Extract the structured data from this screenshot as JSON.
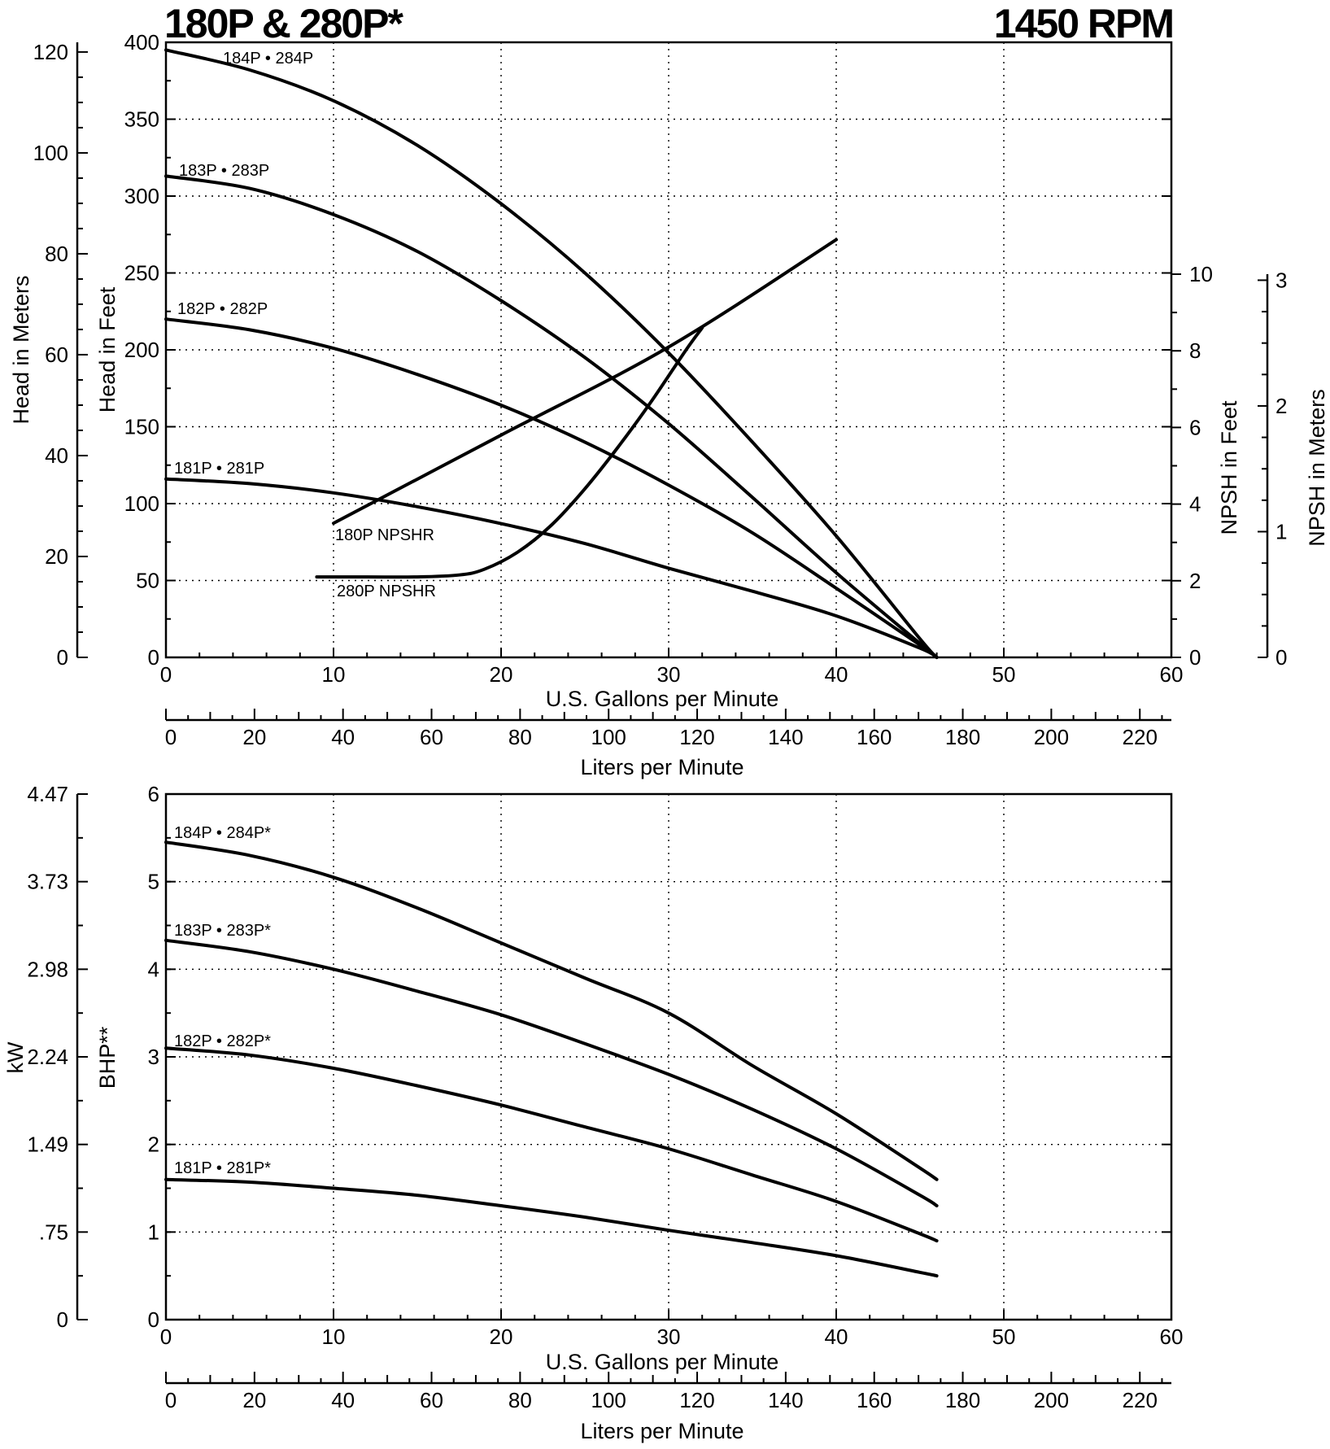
{
  "title_left": "180P & 280P*",
  "title_right": "1450 RPM",
  "chart_data": [
    {
      "name": "head_chart",
      "type": "line",
      "x_unit_label": "U.S. Gallons per Minute",
      "x2_label": "Liters per Minute",
      "y_label": "Head in Feet",
      "y_meters_label": "Head in Meters",
      "npsh_feet_label": "NPSH in Feet",
      "npsh_meters_label": "NPSH in Meters",
      "xlim": [
        0,
        60
      ],
      "ylim": [
        0,
        400
      ],
      "x_ticks": [
        0,
        10,
        20,
        30,
        40,
        50,
        60
      ],
      "y_ticks": [
        0,
        50,
        100,
        150,
        200,
        250,
        300,
        350,
        400
      ],
      "y_meters_ticks": [
        0,
        20,
        40,
        60,
        80,
        100,
        120
      ],
      "npsh_feet_ticks": [
        0,
        2,
        4,
        6,
        8,
        10
      ],
      "npsh_meters_ticks": [
        0,
        1,
        2,
        3
      ],
      "lpm_ticks": [
        0,
        20,
        40,
        60,
        80,
        100,
        120,
        140,
        160,
        180,
        200,
        220
      ],
      "series": [
        {
          "name": "184P • 284P",
          "x": [
            0,
            5,
            10,
            15,
            20,
            25,
            30,
            35,
            40,
            45,
            46
          ],
          "y": [
            395,
            382,
            362,
            333,
            295,
            250,
            198,
            140,
            79,
            12,
            0
          ]
        },
        {
          "name": "183P • 283P",
          "x": [
            0,
            5,
            10,
            15,
            20,
            25,
            30,
            35,
            40,
            45,
            46
          ],
          "y": [
            313,
            305,
            288,
            264,
            232,
            195,
            152,
            104,
            55,
            9,
            0
          ]
        },
        {
          "name": "182P • 282P",
          "x": [
            0,
            5,
            10,
            15,
            20,
            25,
            30,
            35,
            40,
            45,
            46
          ],
          "y": [
            220,
            213,
            201,
            184,
            164,
            140,
            112,
            81,
            45,
            8,
            0
          ]
        },
        {
          "name": "181P • 281P",
          "x": [
            0,
            5,
            10,
            15,
            20,
            25,
            30,
            35,
            40,
            45,
            46
          ],
          "y": [
            116,
            113,
            107,
            98,
            87,
            74,
            58,
            43,
            27,
            6,
            0
          ]
        },
        {
          "name": "180P NPSHR",
          "axis": "npsh_feet",
          "x": [
            10,
            20,
            30,
            40
          ],
          "y": [
            3.5,
            5.8,
            8.1,
            10.9
          ]
        },
        {
          "name": "280P NPSHR",
          "axis": "npsh_feet",
          "x": [
            9,
            12,
            15,
            17.5,
            19,
            21,
            23,
            25,
            27,
            29,
            31,
            32
          ],
          "y": [
            2.1,
            2.1,
            2.1,
            2.15,
            2.3,
            2.75,
            3.45,
            4.4,
            5.5,
            6.7,
            8.0,
            8.6
          ]
        }
      ]
    },
    {
      "name": "power_chart",
      "type": "line",
      "x_unit_label": "U.S. Gallons per Minute",
      "x2_label": "Liters per Minute",
      "y_label": "BHP**",
      "y_kw_label": "kW",
      "xlim": [
        0,
        60
      ],
      "ylim": [
        0,
        6
      ],
      "x_ticks": [
        0,
        10,
        20,
        30,
        40,
        50,
        60
      ],
      "y_ticks": [
        0,
        1,
        2,
        3,
        4,
        5,
        6
      ],
      "kw_ticks": [
        "0",
        ".75",
        "1.49",
        "2.24",
        "2.98",
        "3.73",
        "4.47"
      ],
      "lpm_ticks": [
        0,
        20,
        40,
        60,
        80,
        100,
        120,
        140,
        160,
        180,
        200,
        220
      ],
      "series": [
        {
          "name": "184P • 284P*",
          "x": [
            0,
            5,
            10,
            15,
            20,
            25,
            30,
            35,
            40,
            45,
            46
          ],
          "y": [
            5.45,
            5.3,
            5.05,
            4.7,
            4.3,
            3.9,
            3.5,
            2.9,
            2.35,
            1.73,
            1.6
          ]
        },
        {
          "name": "183P • 283P*",
          "x": [
            0,
            5,
            10,
            15,
            20,
            25,
            30,
            35,
            40,
            45,
            46
          ],
          "y": [
            4.33,
            4.2,
            4.0,
            3.75,
            3.48,
            3.15,
            2.8,
            2.4,
            1.95,
            1.42,
            1.3
          ]
        },
        {
          "name": "182P • 282P*",
          "x": [
            0,
            5,
            10,
            15,
            20,
            25,
            30,
            35,
            40,
            45,
            46
          ],
          "y": [
            3.1,
            3.02,
            2.87,
            2.67,
            2.45,
            2.2,
            1.95,
            1.65,
            1.35,
            0.98,
            0.9
          ]
        },
        {
          "name": "181P • 281P*",
          "x": [
            0,
            5,
            10,
            15,
            20,
            25,
            30,
            35,
            40,
            45,
            46
          ],
          "y": [
            1.6,
            1.57,
            1.5,
            1.42,
            1.3,
            1.17,
            1.02,
            0.88,
            0.73,
            0.54,
            0.5
          ]
        }
      ]
    }
  ]
}
